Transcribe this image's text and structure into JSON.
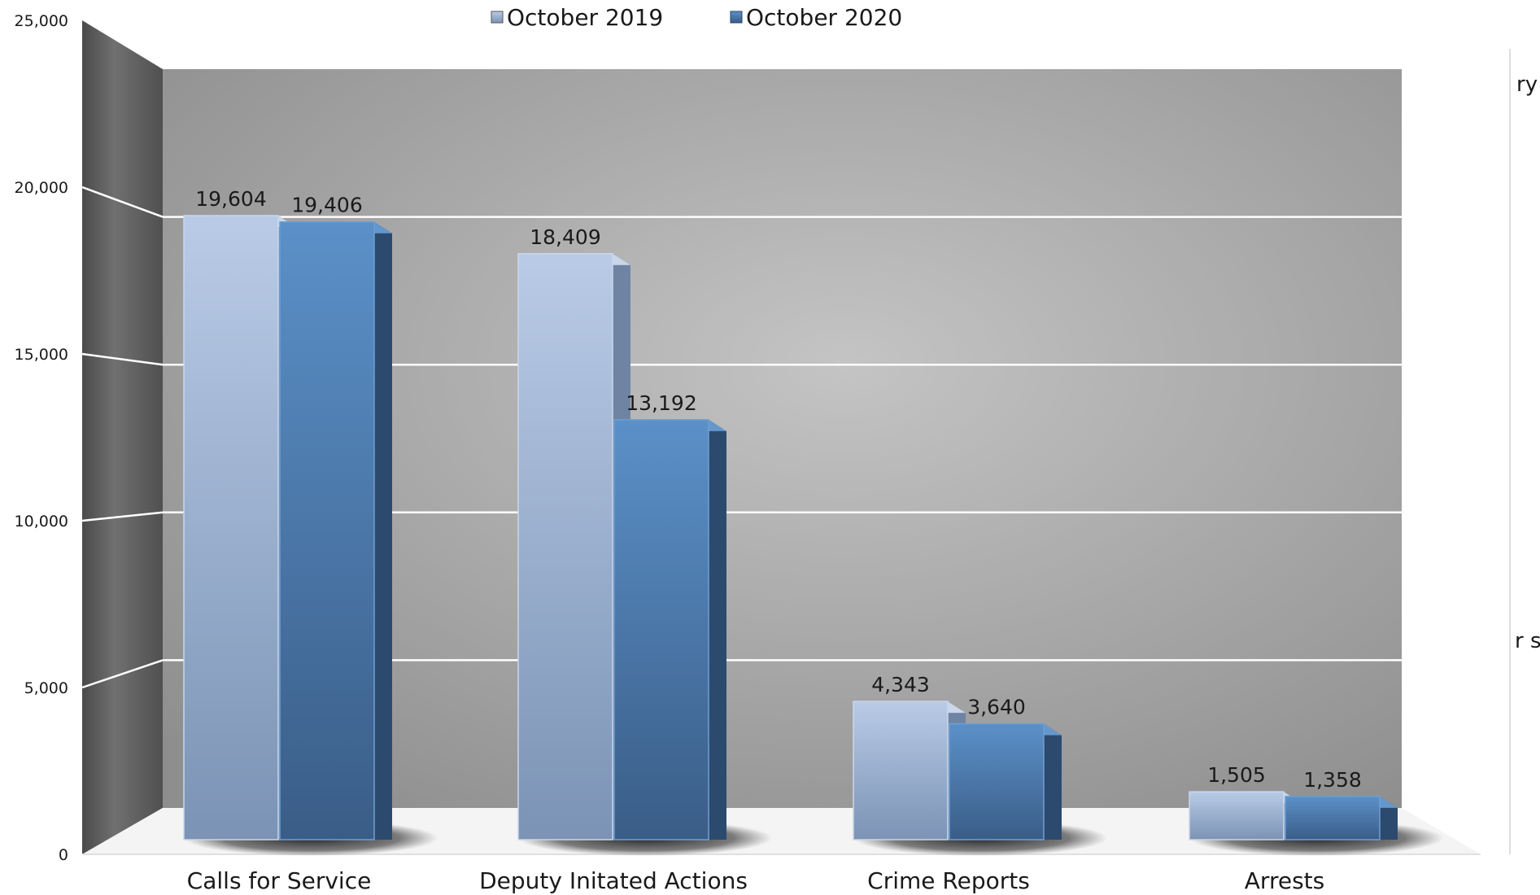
{
  "chart_data": {
    "type": "bar",
    "categories": [
      "Calls for Service",
      "Deputy Initated Actions",
      "Crime Reports",
      "Arrests"
    ],
    "series": [
      {
        "name": "October 2019",
        "values": [
          19604,
          18409,
          4343,
          1505
        ]
      },
      {
        "name": "October 2020",
        "values": [
          19406,
          13192,
          3640,
          1358
        ]
      }
    ],
    "data_labels": [
      [
        "19,604",
        "18,409",
        "4,343",
        "1,505"
      ],
      [
        "19,406",
        "13,192",
        "3,640",
        "1,358"
      ]
    ],
    "y_ticks": [
      "0",
      "5,000",
      "10,000",
      "15,000",
      "20,000",
      "25,000"
    ],
    "ylim": [
      0,
      25000
    ],
    "grid": true,
    "legend": "top-center",
    "three_d": true,
    "colors": {
      "series_2019_top": "#b9cbe6",
      "series_2019_bottom": "#7b93b5",
      "series_2020_top": "#5b90c8",
      "series_2020_bottom": "#3a5d87",
      "back_wall_center": "#c4c4c4",
      "back_wall_edge": "#8e8e8e",
      "side_wall": "#5e5e5e"
    },
    "edge_fragments": [
      "ry",
      "r s"
    ]
  }
}
